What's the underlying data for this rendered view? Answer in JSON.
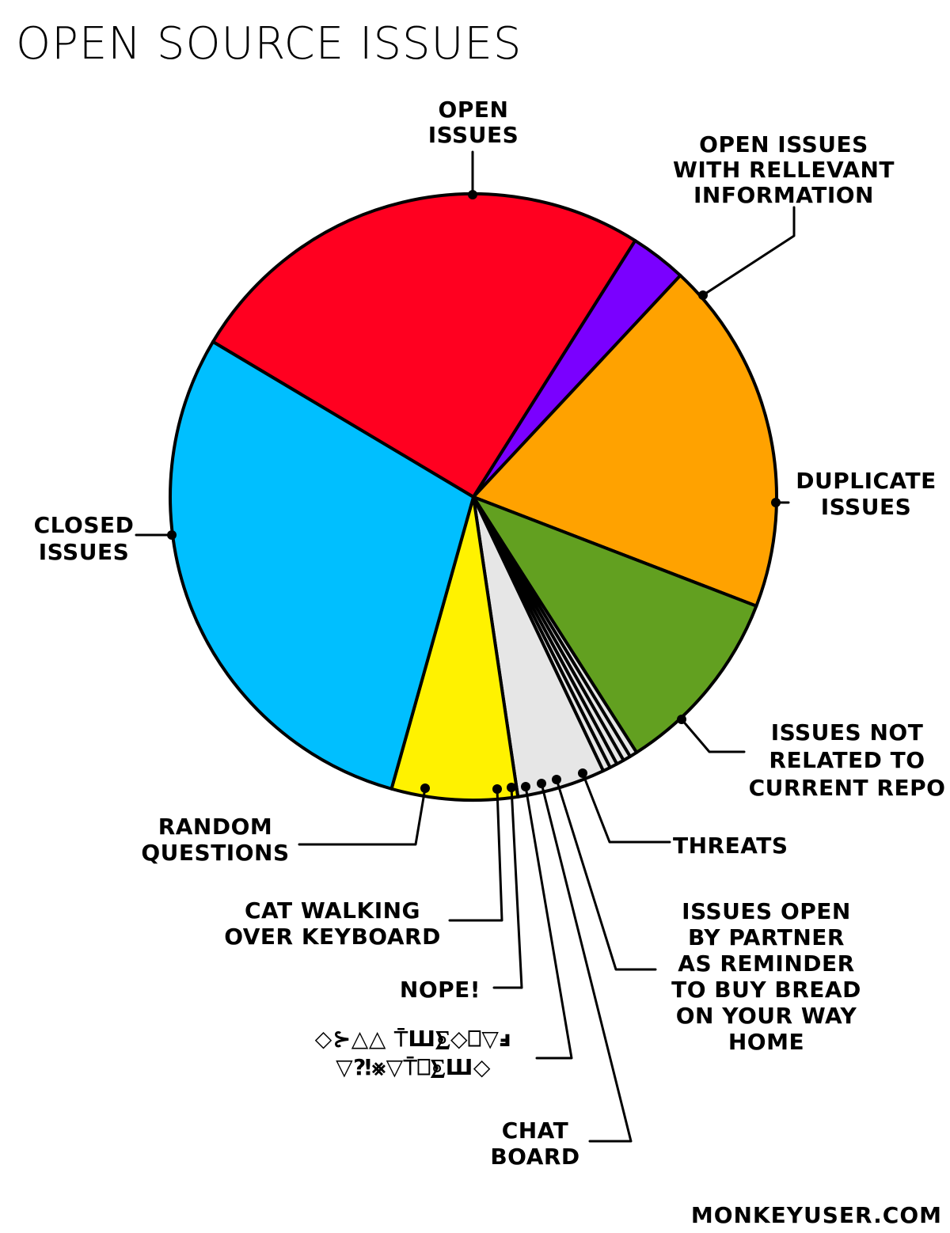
{
  "chart_data": {
    "type": "pie",
    "title": "OPEN SOURCE ISSUES",
    "start_angle_deg": 300.8,
    "slices": [
      {
        "label": "OPEN ISSUES",
        "value": 25.4,
        "color": "#ff0020"
      },
      {
        "label": "OPEN ISSUES WITH RELLEVANT INFORMATION",
        "value": 3.0,
        "color": "#7a00ff"
      },
      {
        "label": "DUPLICATE ISSUES",
        "value": 18.9,
        "color": "#ffa200"
      },
      {
        "label": "ISSUES NOT RELATED TO CURRENT REPO",
        "value": 10.1,
        "color": "#62a020"
      },
      {
        "label": "THREATS",
        "value": 0.4,
        "color": "#e6e6e6"
      },
      {
        "label": "ISSUES OPEN BY PARTNER AS REMINDER TO BUY BREAD ON YOUR WAY HOME",
        "value": 0.4,
        "color": "#e6e6e6"
      },
      {
        "label": "CHAT BOARD",
        "value": 0.4,
        "color": "#e6e6e6"
      },
      {
        "label": "◇⊱△△ ⍑Ш⨊◇⎕▽ⅎ ▽⁈⨳▽⍑⎕⨊Ш◇",
        "value": 0.4,
        "color": "#e6e6e6"
      },
      {
        "label": "NOPE!",
        "value": 0.4,
        "color": "#e6e6e6"
      },
      {
        "label": "CAT WALKING OVER KEYBOARD",
        "value": 4.7,
        "color": "#e6e6e6"
      },
      {
        "label": "RANDOM QUESTIONS",
        "value": 6.7,
        "color": "#fff200"
      },
      {
        "label": "CLOSED ISSUES",
        "value": 29.2,
        "color": "#00bfff"
      }
    ]
  },
  "labels": {
    "open_issues": [
      "OPEN",
      "ISSUES"
    ],
    "open_relevant": [
      "OPEN ISSUES",
      "WITH RELLEVANT",
      "INFORMATION"
    ],
    "duplicate": [
      "DUPLICATE",
      "ISSUES"
    ],
    "not_related": [
      "ISSUES NOT",
      "RELATED TO",
      "CURRENT REPO"
    ],
    "threats": [
      "THREATS"
    ],
    "bread": [
      "ISSUES OPEN",
      "BY PARTNER",
      "AS REMINDER",
      "TO BUY BREAD",
      "ON YOUR WAY",
      "HOME"
    ],
    "chat_board": [
      "CHAT",
      "BOARD"
    ],
    "glyphs": [
      "◇⊱△△ ⍑Ш⨊◇⎕▽ⅎ",
      "▽⁈⨳▽⍑⎕⨊Ш◇"
    ],
    "nope": [
      "NOPE!"
    ],
    "cat": [
      "CAT WALKING",
      "OVER KEYBOARD"
    ],
    "random": [
      "RANDOM",
      "QUESTIONS"
    ],
    "closed": [
      "CLOSED",
      "ISSUES"
    ]
  },
  "credit": "MONKEYUSER.COM"
}
